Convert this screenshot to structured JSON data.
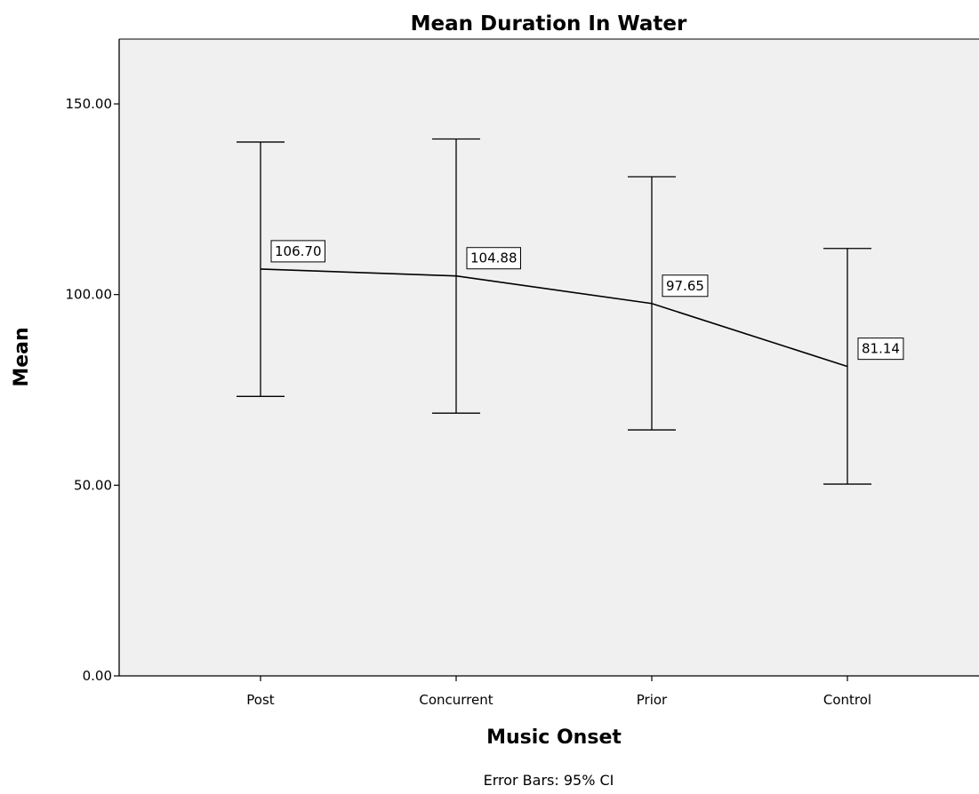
{
  "chart_data": {
    "type": "line",
    "title": "Mean Duration In Water",
    "xlabel": "Music Onset",
    "ylabel": "Mean",
    "categories": [
      "Post",
      "Concurrent",
      "Prior",
      "Control"
    ],
    "values": [
      106.7,
      104.88,
      97.65,
      81.14
    ],
    "value_labels": [
      "106.70",
      "104.88",
      "97.65",
      "81.14"
    ],
    "error_bars": {
      "lower": [
        73.3,
        68.9,
        64.5,
        50.3
      ],
      "upper": [
        140.0,
        140.8,
        130.9,
        112.1
      ]
    },
    "ylim": [
      0,
      150
    ],
    "y_ticks": [
      0,
      50,
      100,
      150
    ],
    "y_tick_labels": [
      "0.00",
      "50.00",
      "100.00",
      "150.00"
    ],
    "grid": false,
    "legend": "none",
    "footnote": "Error Bars: 95% CI",
    "colors": {
      "plot_background": "#f0f0f0",
      "line": "#000000"
    }
  }
}
